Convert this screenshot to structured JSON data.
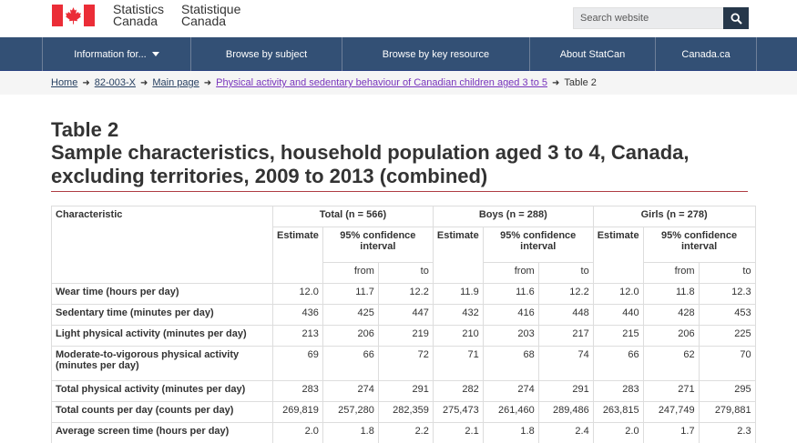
{
  "header": {
    "org_en_line1": "Statistics",
    "org_en_line2": "Canada",
    "org_fr_line1": "Statistique",
    "org_fr_line2": "Canada",
    "search_placeholder": "Search website"
  },
  "nav": {
    "items": [
      {
        "label": "Information for..."
      },
      {
        "label": "Browse by subject"
      },
      {
        "label": "Browse by key resource"
      },
      {
        "label": "About StatCan"
      },
      {
        "label": "Canada.ca"
      }
    ]
  },
  "breadcrumb": [
    {
      "label": "Home"
    },
    {
      "label": "82-003-X"
    },
    {
      "label": "Main page"
    },
    {
      "label": "Physical activity and sedentary behaviour of Canadian children aged 3 to 5"
    },
    {
      "label": "Table 2"
    }
  ],
  "page": {
    "table_number": "Table 2",
    "title": "Sample characteristics, household population aged 3 to 4, Canada, excluding territories, 2009 to 2013 (combined)"
  },
  "table": {
    "col_characteristic": "Characteristic",
    "groups": [
      {
        "label": "Total (n = 566)"
      },
      {
        "label": "Boys (n = 288)"
      },
      {
        "label": "Girls (n = 278)"
      }
    ],
    "estimate_label": "Estimate",
    "ci_label": "95% confidence interval",
    "from_label": "from",
    "to_label": "to",
    "rows": [
      {
        "label": "Wear time (hours per day)",
        "values": [
          "12.0",
          "11.7",
          "12.2",
          "11.9",
          "11.6",
          "12.2",
          "12.0",
          "11.8",
          "12.3"
        ]
      },
      {
        "label": "Sedentary time (minutes per day)",
        "values": [
          "436",
          "425",
          "447",
          "432",
          "416",
          "448",
          "440",
          "428",
          "453"
        ]
      },
      {
        "label": "Light physical activity (minutes per day)",
        "values": [
          "213",
          "206",
          "219",
          "210",
          "203",
          "217",
          "215",
          "206",
          "225"
        ]
      },
      {
        "label": "Moderate-to-vigorous physical activity (minutes per day)",
        "values": [
          "69",
          "66",
          "72",
          "71",
          "68",
          "74",
          "66",
          "62",
          "70"
        ]
      },
      {
        "label": "Total physical activity (minutes per day)",
        "values": [
          "283",
          "274",
          "291",
          "282",
          "274",
          "291",
          "283",
          "271",
          "295"
        ]
      },
      {
        "label": "Total counts per day (counts per day)",
        "values": [
          "269,819",
          "257,280",
          "282,359",
          "275,473",
          "261,460",
          "289,486",
          "263,815",
          "247,749",
          "279,881"
        ]
      },
      {
        "label": "Average screen time (hours per day)",
        "values": [
          "2.0",
          "1.8",
          "2.2",
          "2.1",
          "1.8",
          "2.4",
          "2.0",
          "1.7",
          "2.3"
        ]
      }
    ]
  }
}
